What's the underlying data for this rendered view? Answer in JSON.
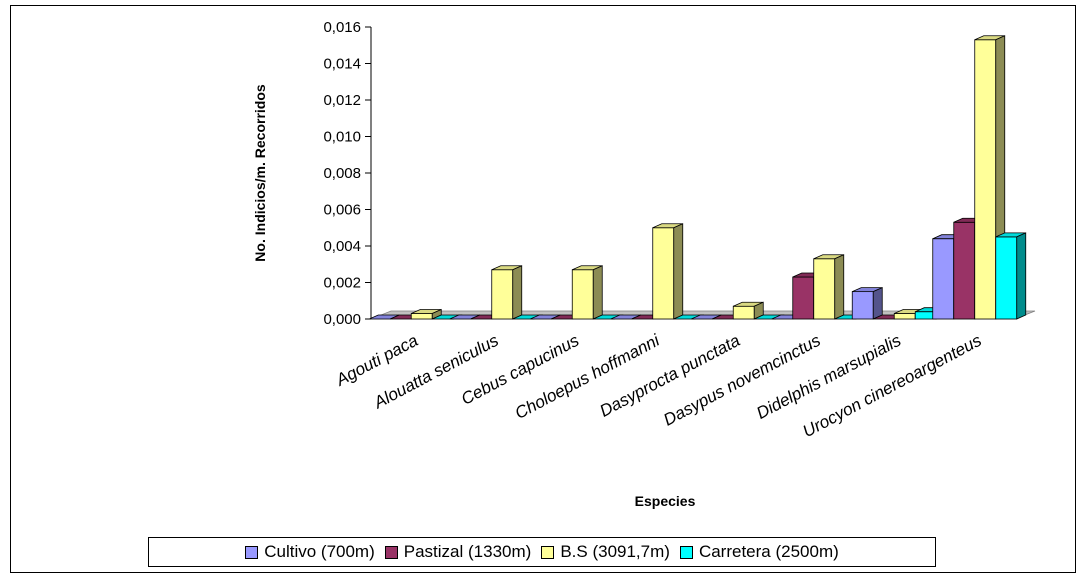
{
  "chart_data": {
    "type": "bar",
    "variant": "3d-clustered",
    "title": "",
    "xlabel": "Especies",
    "ylabel": "No. Indicios/m. Recorridos",
    "ylim": [
      0,
      0.016
    ],
    "ytick_labels": [
      "0,000",
      "0,002",
      "0,004",
      "0,006",
      "0,008",
      "0,010",
      "0,012",
      "0,014",
      "0,016"
    ],
    "categories": [
      "Agouti paca",
      "Alouatta seniculus",
      "Cebus capucinus",
      "Choloepus hoffmanni",
      "Dasyprocta punctata",
      "Dasypus novemcinctus",
      "Didelphis marsupialis",
      "Urocyon cinereoargenteus"
    ],
    "series": [
      {
        "name": "Cultivo (700m)",
        "color": "#9999FF",
        "values": [
          0,
          0,
          0,
          0,
          0,
          0,
          0.0015,
          0.0044
        ]
      },
      {
        "name": "Pastizal (1330m)",
        "color": "#993366",
        "values": [
          0,
          0,
          0,
          0,
          0,
          0.0023,
          0,
          0.0053
        ]
      },
      {
        "name": "B.S (3091,7m)",
        "color": "#FFFF99",
        "values": [
          0.0003,
          0.0027,
          0.0027,
          0.005,
          0.0007,
          0.0033,
          0.0003,
          0.0153
        ]
      },
      {
        "name": "Carretera (2500m)",
        "color": "#00FFFF",
        "values": [
          0,
          0,
          0,
          0,
          0,
          0,
          0.0004,
          0.0045
        ]
      }
    ],
    "grid": false,
    "legend_position": "bottom"
  }
}
